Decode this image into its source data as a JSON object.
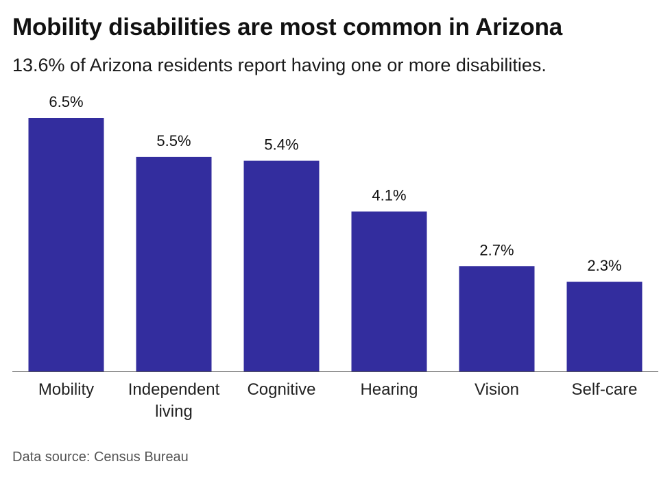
{
  "title": "Mobility disabilities are most common in Arizona",
  "subtitle": "13.6% of Arizona residents report having one or more disabilities.",
  "source": "Data source: Census Bureau",
  "colors": {
    "bar": "#332d9e",
    "baseline": "#555555",
    "text": "#111111"
  },
  "chart_data": {
    "type": "bar",
    "categories": [
      [
        "Mobility"
      ],
      [
        "Independent",
        "living"
      ],
      [
        "Cognitive"
      ],
      [
        "Hearing"
      ],
      [
        "Vision"
      ],
      [
        "Self-care"
      ]
    ],
    "values": [
      6.5,
      5.5,
      5.4,
      4.1,
      2.7,
      2.3
    ],
    "data_labels": [
      "6.5%",
      "5.5%",
      "5.4%",
      "4.1%",
      "2.7%",
      "2.3%"
    ],
    "title": "Mobility disabilities are most common in Arizona",
    "xlabel": "",
    "ylabel": "",
    "ylim": [
      0,
      6.5
    ],
    "grid": false,
    "legend": "none"
  }
}
